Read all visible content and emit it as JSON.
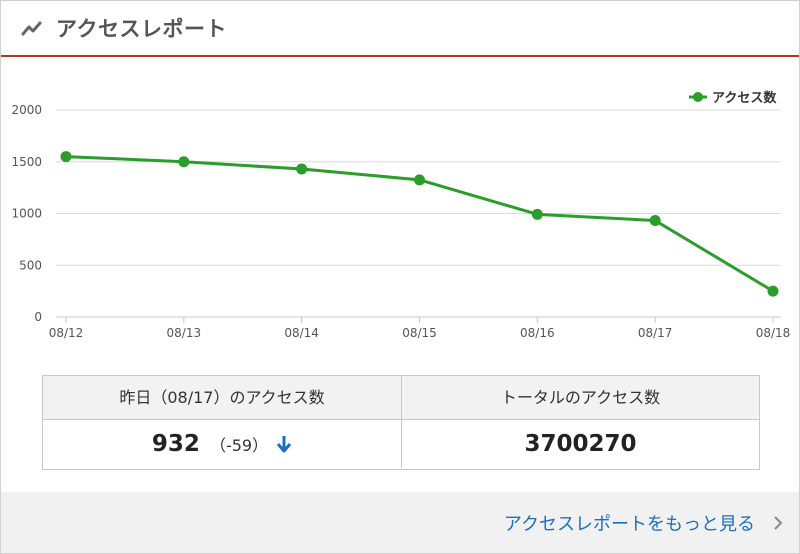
{
  "header": {
    "title": "アクセスレポート",
    "icon": "trend-icon",
    "accent": "#b33a1f"
  },
  "chart_data": {
    "type": "line",
    "categories": [
      "08/12",
      "08/13",
      "08/14",
      "08/15",
      "08/16",
      "08/17",
      "08/18"
    ],
    "series": [
      {
        "name": "アクセス数",
        "values": [
          1550,
          1500,
          1430,
          1325,
          992,
          932,
          250
        ],
        "color": "#2a9d2a"
      }
    ],
    "ylim": [
      0,
      2000
    ],
    "yticks": [
      "0",
      "500",
      "1000",
      "1500",
      "2000"
    ],
    "grid": true,
    "legend": "top-right"
  },
  "summary": {
    "yesterday_label": "昨日（08/17）のアクセス数",
    "total_label": "トータルのアクセス数",
    "yesterday_value": "932",
    "yesterday_delta": "（-59）",
    "delta_icon": "arrow-down-icon",
    "total_value": "3700270"
  },
  "footer": {
    "link_label": "アクセスレポートをもっと見る",
    "chevron_icon": "chevron-right-icon",
    "link_color": "#1a6fc4"
  }
}
